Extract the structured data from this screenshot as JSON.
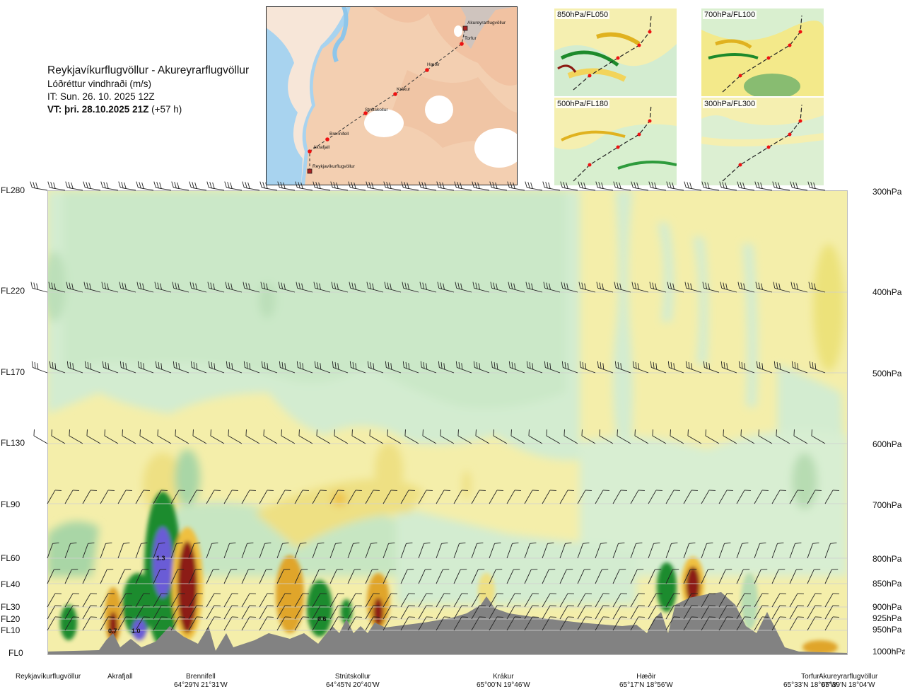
{
  "header": {
    "route": "Reykjavíkurflugvöllur - Akureyrarflugvöllur",
    "quantity": "Lóðréttur vindhraði (m/s)",
    "issue_time": "IT: Sun. 26. 10. 2025 12Z",
    "valid_time": "VT: þri. 28.10.2025 21Z",
    "lead_time": "(+57 h)"
  },
  "map": {
    "waypoints": [
      "Akureyrarflugvöllur",
      "Torfur",
      "Hæðir",
      "Krákur",
      "Strútskollur",
      "Brennifell",
      "Akrafjall",
      "Reykjavíkurflugvöllur"
    ]
  },
  "mini_maps": [
    {
      "label": "850hPa/FL050"
    },
    {
      "label": "700hPa/FL100"
    },
    {
      "label": "500hPa/FL180"
    },
    {
      "label": "300hPa/FL300"
    }
  ],
  "chart_data": {
    "type": "heatmap",
    "title": "Lóðréttur vindhraði (m/s)",
    "x_axis": {
      "waypoints": [
        {
          "name": "Reykjavíkurflugvöllur",
          "coord": ""
        },
        {
          "name": "Akrafjall",
          "coord": ""
        },
        {
          "name": "Brennifell",
          "coord": "64°29'N 21°31'W"
        },
        {
          "name": "Strútskollur",
          "coord": "64°45'N 20°40'W"
        },
        {
          "name": "Krákur",
          "coord": "65°00'N 19°46'W"
        },
        {
          "name": "Hæðir",
          "coord": "65°17'N 18°56'W"
        },
        {
          "name": "Torfur",
          "coord": "65°33'N 18°07'W"
        },
        {
          "name": "Akureyrarflugvöllur",
          "coord": "65°39'N 18°04'W"
        }
      ]
    },
    "y_axis_left": [
      "FL280",
      "FL220",
      "FL170",
      "FL130",
      "FL90",
      "FL60",
      "FL40",
      "FL30",
      "FL20",
      "FL10",
      "FL0"
    ],
    "y_axis_right": [
      "300hPa",
      "400hPa",
      "500hPa",
      "600hPa",
      "700hPa",
      "800hPa",
      "850hPa",
      "900hPa",
      "925hPa",
      "950hPa",
      "1000hPa"
    ],
    "annotations": [
      {
        "text": "1.3",
        "at": "Brennifell, FL60"
      },
      {
        "text": "1.0",
        "at": "Akrafjall-Brennifell, FL10"
      },
      {
        "text": "0.7",
        "at": "Akrafjall, FL10"
      },
      {
        "text": "0.6",
        "at": "Strútskollur, FL20"
      }
    ],
    "grid": false
  }
}
